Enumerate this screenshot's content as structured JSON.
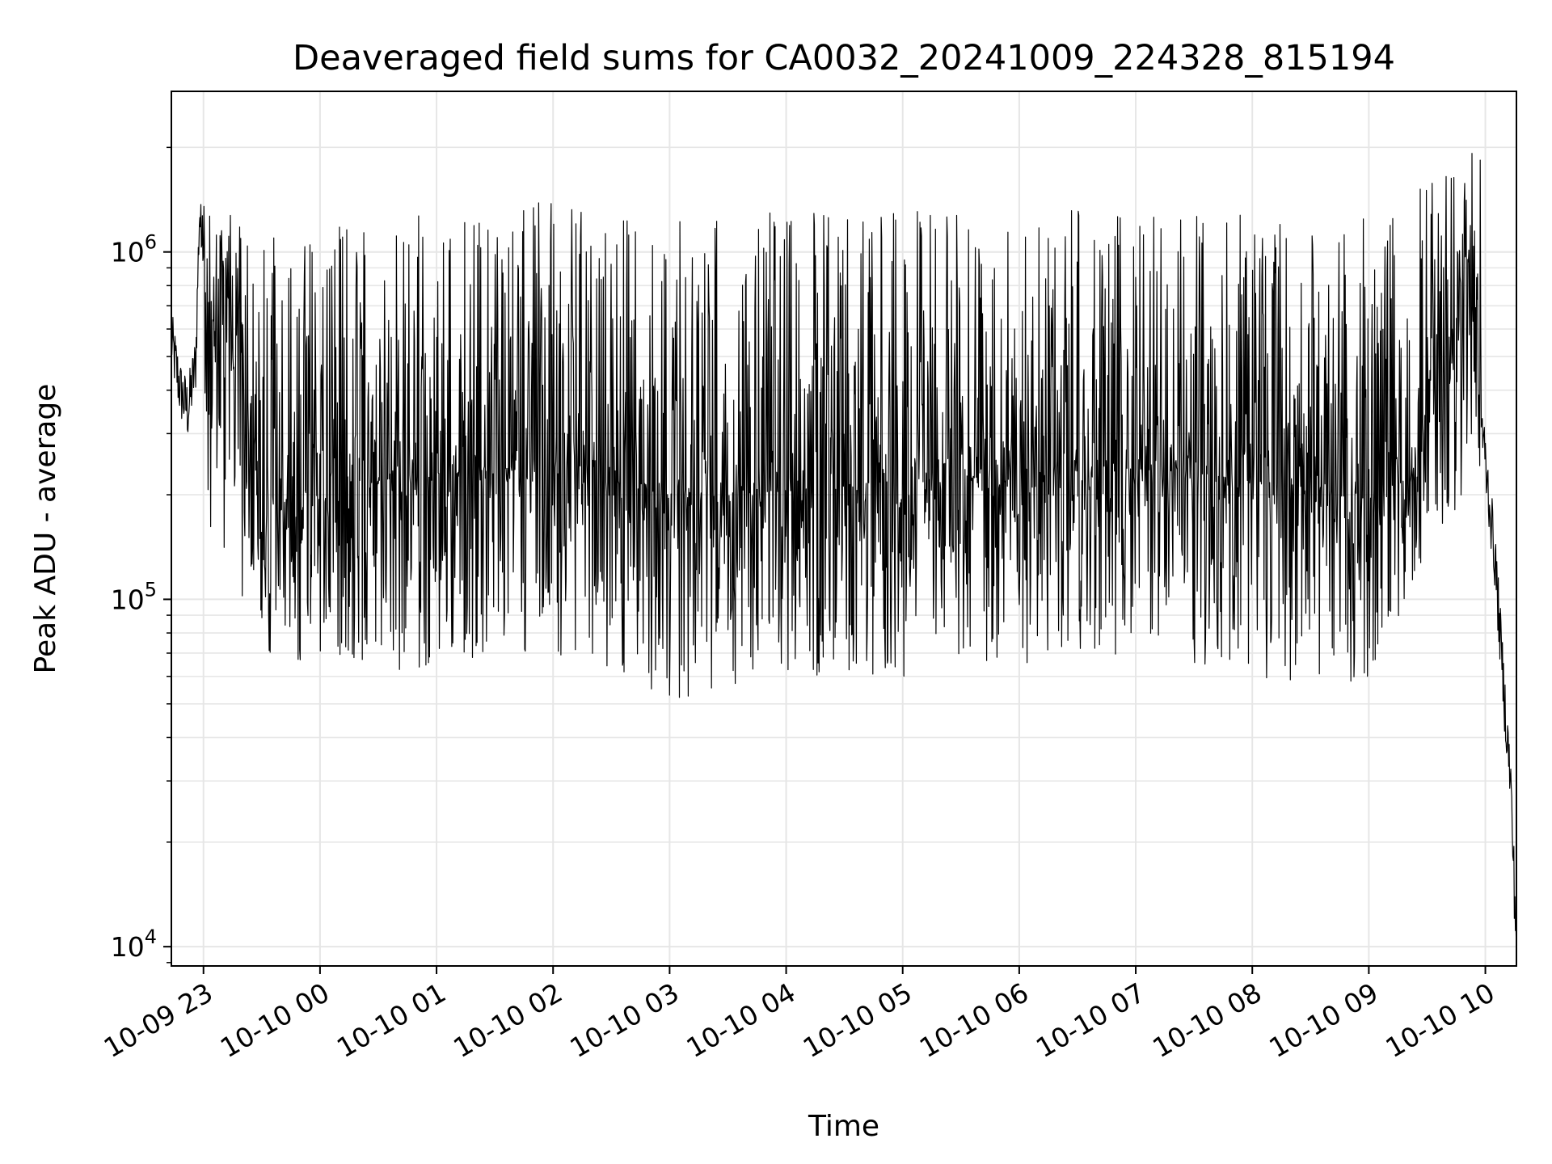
{
  "chart_data": {
    "type": "line",
    "title": "Deaveraged field sums for CA0032_20241009_224328_815194",
    "xlabel": "Time",
    "ylabel": "Peak ADU - average",
    "y_scale": "log",
    "xlim": [
      "2024-10-09 22:43:28",
      "2024-10-10 10:16:00"
    ],
    "ylim": [
      8800,
      2900000
    ],
    "grid": true,
    "line_color": "#000000",
    "grid_color": "#e6e6e6",
    "y_ticks": [
      {
        "value": 10000,
        "base": "10",
        "exp": "4"
      },
      {
        "value": 100000,
        "base": "10",
        "exp": "5"
      },
      {
        "value": 1000000,
        "base": "10",
        "exp": "6"
      }
    ],
    "x_ticks": [
      {
        "time": "2024-10-09 23:00",
        "label": "10-09 23"
      },
      {
        "time": "2024-10-10 00:00",
        "label": "10-10 00"
      },
      {
        "time": "2024-10-10 01:00",
        "label": "10-10 01"
      },
      {
        "time": "2024-10-10 02:00",
        "label": "10-10 02"
      },
      {
        "time": "2024-10-10 03:00",
        "label": "10-10 03"
      },
      {
        "time": "2024-10-10 04:00",
        "label": "10-10 04"
      },
      {
        "time": "2024-10-10 05:00",
        "label": "10-10 05"
      },
      {
        "time": "2024-10-10 06:00",
        "label": "10-10 06"
      },
      {
        "time": "2024-10-10 07:00",
        "label": "10-10 07"
      },
      {
        "time": "2024-10-10 08:00",
        "label": "10-10 08"
      },
      {
        "time": "2024-10-10 09:00",
        "label": "10-10 09"
      },
      {
        "time": "2024-10-10 10:00",
        "label": "10-10 10"
      }
    ],
    "series": [
      {
        "points": [
          [
            "2024-10-09 22:43:28",
            560000
          ],
          [
            "2024-10-09 22:48",
            400000
          ],
          [
            "2024-10-09 22:52",
            350000
          ],
          [
            "2024-10-09 22:56",
            480000
          ],
          [
            "2024-10-09 22:58",
            1350000
          ],
          [
            "2024-10-09 23:00",
            800000
          ],
          [
            "2024-10-09 23:05",
            650000
          ],
          [
            "2024-10-09 23:10",
            900000
          ],
          [
            "2024-10-09 23:15",
            600000
          ],
          [
            "2024-10-09 23:20",
            500000
          ],
          [
            "2024-10-09 23:25",
            300000
          ],
          [
            "2024-10-09 23:30",
            150000
          ],
          [
            "2024-10-09 23:35",
            200000
          ],
          [
            "2024-10-09 23:45",
            150000
          ],
          [
            "2024-10-10 00:00",
            200000
          ],
          [
            "2024-10-10 00:30",
            220000
          ],
          [
            "2024-10-10 01:00",
            230000
          ],
          [
            "2024-10-10 02:00",
            240000
          ],
          [
            "2024-10-10 03:00",
            200000
          ],
          [
            "2024-10-10 04:00",
            210000
          ],
          [
            "2024-10-10 05:00",
            220000
          ],
          [
            "2024-10-10 06:00",
            230000
          ],
          [
            "2024-10-10 07:00",
            240000
          ],
          [
            "2024-10-10 08:00",
            220000
          ],
          [
            "2024-10-10 09:00",
            200000
          ],
          [
            "2024-10-10 09:25",
            230000
          ],
          [
            "2024-10-10 09:35",
            450000
          ],
          [
            "2024-10-10 09:45",
            650000
          ],
          [
            "2024-10-10 09:52",
            900000
          ],
          [
            "2024-10-10 09:55",
            500000
          ],
          [
            "2024-10-10 10:00",
            250000
          ],
          [
            "2024-10-10 10:05",
            130000
          ],
          [
            "2024-10-10 10:10",
            50000
          ],
          [
            "2024-10-10 10:13",
            30000
          ],
          [
            "2024-10-10 10:16",
            10000
          ]
        ],
        "envelope_note": "",
        "upper": [
          [
            "2024-10-09 23:00",
            1700000
          ],
          [
            "2024-10-09 23:30",
            1100000
          ],
          [
            "2024-10-10 00:00",
            1200000
          ],
          [
            "2024-10-10 01:00",
            1300000
          ],
          [
            "2024-10-10 02:00",
            1400000
          ],
          [
            "2024-10-10 03:00",
            1300000
          ],
          [
            "2024-10-10 04:00",
            1350000
          ],
          [
            "2024-10-10 05:00",
            1400000
          ],
          [
            "2024-10-10 06:00",
            1300000
          ],
          [
            "2024-10-10 07:00",
            1350000
          ],
          [
            "2024-10-10 08:00",
            1300000
          ],
          [
            "2024-10-10 09:00",
            1250000
          ],
          [
            "2024-10-10 10:00",
            2100000
          ]
        ],
        "lower": [
          [
            "2024-10-09 23:00",
            180000
          ],
          [
            "2024-10-09 23:30",
            70000
          ],
          [
            "2024-10-10 00:00",
            60000
          ],
          [
            "2024-10-10 01:00",
            60000
          ],
          [
            "2024-10-10 02:00",
            70000
          ],
          [
            "2024-10-10 03:00",
            50000
          ],
          [
            "2024-10-10 04:00",
            60000
          ],
          [
            "2024-10-10 05:00",
            60000
          ],
          [
            "2024-10-10 06:00",
            65000
          ],
          [
            "2024-10-10 07:00",
            70000
          ],
          [
            "2024-10-10 08:00",
            60000
          ],
          [
            "2024-10-10 09:00",
            55000
          ],
          [
            "2024-10-10 10:00",
            250000
          ]
        ]
      }
    ]
  }
}
